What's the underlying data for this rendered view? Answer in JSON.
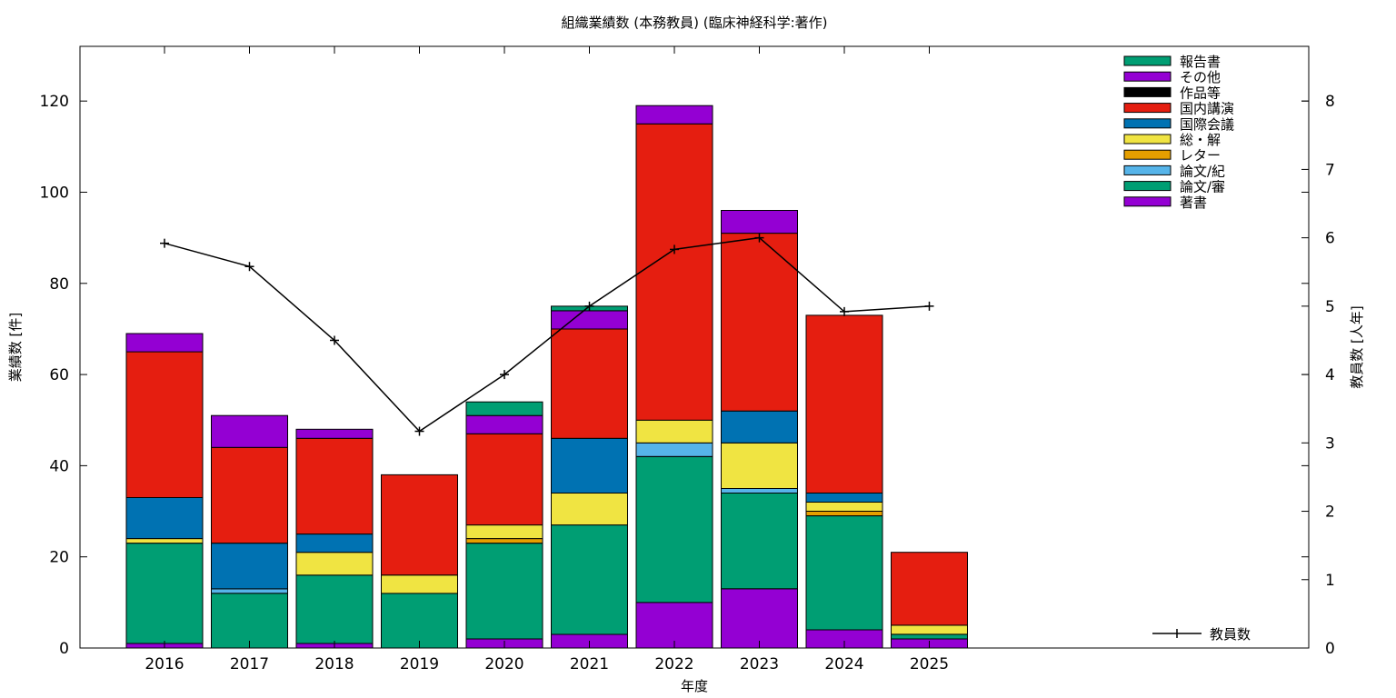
{
  "chart_data": {
    "type": "bar",
    "stacked": true,
    "title": "組織業績数 (本務教員) (臨床神経科学:著作)",
    "xlabel": "年度",
    "ylabel": "業績数 [件]",
    "y2label": "教員数 [人年]",
    "ylim": [
      0,
      132
    ],
    "y2lim": [
      0,
      8.8
    ],
    "yticks": [
      0,
      20,
      40,
      60,
      80,
      100,
      120
    ],
    "y2ticks": [
      0,
      1,
      2,
      3,
      4,
      5,
      6,
      7,
      8
    ],
    "categories": [
      "2016",
      "2017",
      "2018",
      "2019",
      "2020",
      "2021",
      "2022",
      "2023",
      "2024",
      "2025"
    ],
    "grid": false,
    "legend_position": "top-right",
    "series": [
      {
        "name": "著書",
        "color": "#9400d3",
        "values": [
          1,
          0,
          1,
          0,
          2,
          3,
          10,
          13,
          4,
          2
        ]
      },
      {
        "name": "論文/審",
        "color": "#009e73",
        "values": [
          22,
          12,
          15,
          12,
          21,
          24,
          32,
          21,
          25,
          1
        ]
      },
      {
        "name": "論文/紀",
        "color": "#56b4e9",
        "values": [
          0,
          1,
          0,
          0,
          0,
          0,
          3,
          1,
          0,
          0
        ]
      },
      {
        "name": "レター",
        "color": "#e69f00",
        "values": [
          0,
          0,
          0,
          0,
          1,
          0,
          0,
          0,
          1,
          0
        ]
      },
      {
        "name": "総・解",
        "color": "#f0e442",
        "values": [
          1,
          0,
          5,
          4,
          3,
          7,
          5,
          10,
          2,
          2
        ]
      },
      {
        "name": "国際会議",
        "color": "#0072b2",
        "values": [
          9,
          10,
          4,
          0,
          0,
          12,
          0,
          7,
          2,
          0
        ]
      },
      {
        "name": "国内講演",
        "color": "#e51e10",
        "values": [
          32,
          21,
          21,
          22,
          20,
          24,
          65,
          39,
          39,
          16
        ]
      },
      {
        "name": "作品等",
        "color": "#000000",
        "values": [
          0,
          0,
          0,
          0,
          0,
          0,
          0,
          0,
          0,
          0
        ]
      },
      {
        "name": "その他",
        "color": "#9400d3",
        "values": [
          4,
          7,
          2,
          0,
          4,
          4,
          4,
          5,
          0,
          0
        ]
      },
      {
        "name": "報告書",
        "color": "#009e73",
        "values": [
          0,
          0,
          0,
          0,
          3,
          1,
          0,
          0,
          0,
          0
        ]
      }
    ],
    "line": {
      "name": "教員数",
      "axis": "y2",
      "color": "#000000",
      "values": [
        5.92,
        5.58,
        4.5,
        3.17,
        4.0,
        5.0,
        5.83,
        6.0,
        4.92,
        5.0
      ]
    }
  }
}
